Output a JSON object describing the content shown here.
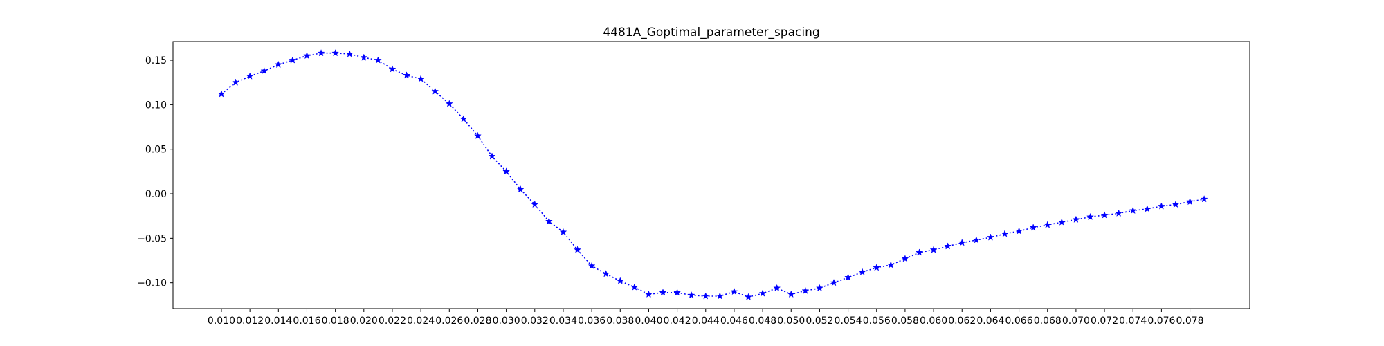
{
  "chart_data": {
    "type": "line",
    "title": "4481A_Goptimal_parameter_spacing",
    "xlabel": "",
    "ylabel": "",
    "xlim": [
      0.0066,
      0.0822
    ],
    "ylim": [
      -0.129,
      0.171
    ],
    "x_ticks": [
      "0.010",
      "0.012",
      "0.014",
      "0.016",
      "0.018",
      "0.020",
      "0.022",
      "0.024",
      "0.026",
      "0.028",
      "0.030",
      "0.032",
      "0.034",
      "0.036",
      "0.038",
      "0.040",
      "0.042",
      "0.044",
      "0.046",
      "0.048",
      "0.050",
      "0.052",
      "0.054",
      "0.056",
      "0.058",
      "0.060",
      "0.062",
      "0.064",
      "0.066",
      "0.068",
      "0.070",
      "0.072",
      "0.074",
      "0.076",
      "0.078"
    ],
    "y_ticks": [
      "0.15",
      "0.10",
      "0.05",
      "0.00",
      "−0.05",
      "−0.10"
    ],
    "y_tick_values": [
      0.15,
      0.1,
      0.05,
      0.0,
      -0.05,
      -0.1
    ],
    "grid": false,
    "line_color": "#0000ff",
    "line_style": "dotted",
    "marker": "star",
    "series": [
      {
        "x": [
          0.01,
          0.011,
          0.012,
          0.013,
          0.014,
          0.015,
          0.016,
          0.017,
          0.018,
          0.019,
          0.02,
          0.021,
          0.022,
          0.023,
          0.024,
          0.025,
          0.026,
          0.027,
          0.028,
          0.029,
          0.03,
          0.031,
          0.032,
          0.033,
          0.034,
          0.035,
          0.036,
          0.037,
          0.038,
          0.039,
          0.04,
          0.041,
          0.042,
          0.043,
          0.044,
          0.045,
          0.046,
          0.047,
          0.048,
          0.049,
          0.05,
          0.051,
          0.052,
          0.053,
          0.054,
          0.055,
          0.056,
          0.057,
          0.058,
          0.059,
          0.06,
          0.061,
          0.062,
          0.063,
          0.064,
          0.065,
          0.066,
          0.067,
          0.068,
          0.069,
          0.07,
          0.071,
          0.072,
          0.073,
          0.074,
          0.075,
          0.076,
          0.077,
          0.078,
          0.079
        ],
        "y": [
          0.112,
          0.125,
          0.132,
          0.138,
          0.145,
          0.15,
          0.155,
          0.158,
          0.158,
          0.157,
          0.153,
          0.15,
          0.14,
          0.133,
          0.129,
          0.115,
          0.101,
          0.084,
          0.065,
          0.042,
          0.025,
          0.005,
          -0.012,
          -0.031,
          -0.043,
          -0.063,
          -0.081,
          -0.09,
          -0.098,
          -0.105,
          -0.113,
          -0.111,
          -0.111,
          -0.114,
          -0.115,
          -0.115,
          -0.11,
          -0.116,
          -0.112,
          -0.106,
          -0.113,
          -0.109,
          -0.106,
          -0.1,
          -0.094,
          -0.088,
          -0.083,
          -0.08,
          -0.073,
          -0.066,
          -0.063,
          -0.059,
          -0.055,
          -0.052,
          -0.049,
          -0.045,
          -0.042,
          -0.038,
          -0.035,
          -0.032,
          -0.029,
          -0.026,
          -0.024,
          -0.022,
          -0.019,
          -0.017,
          -0.014,
          -0.012,
          -0.009,
          -0.006
        ]
      }
    ]
  }
}
